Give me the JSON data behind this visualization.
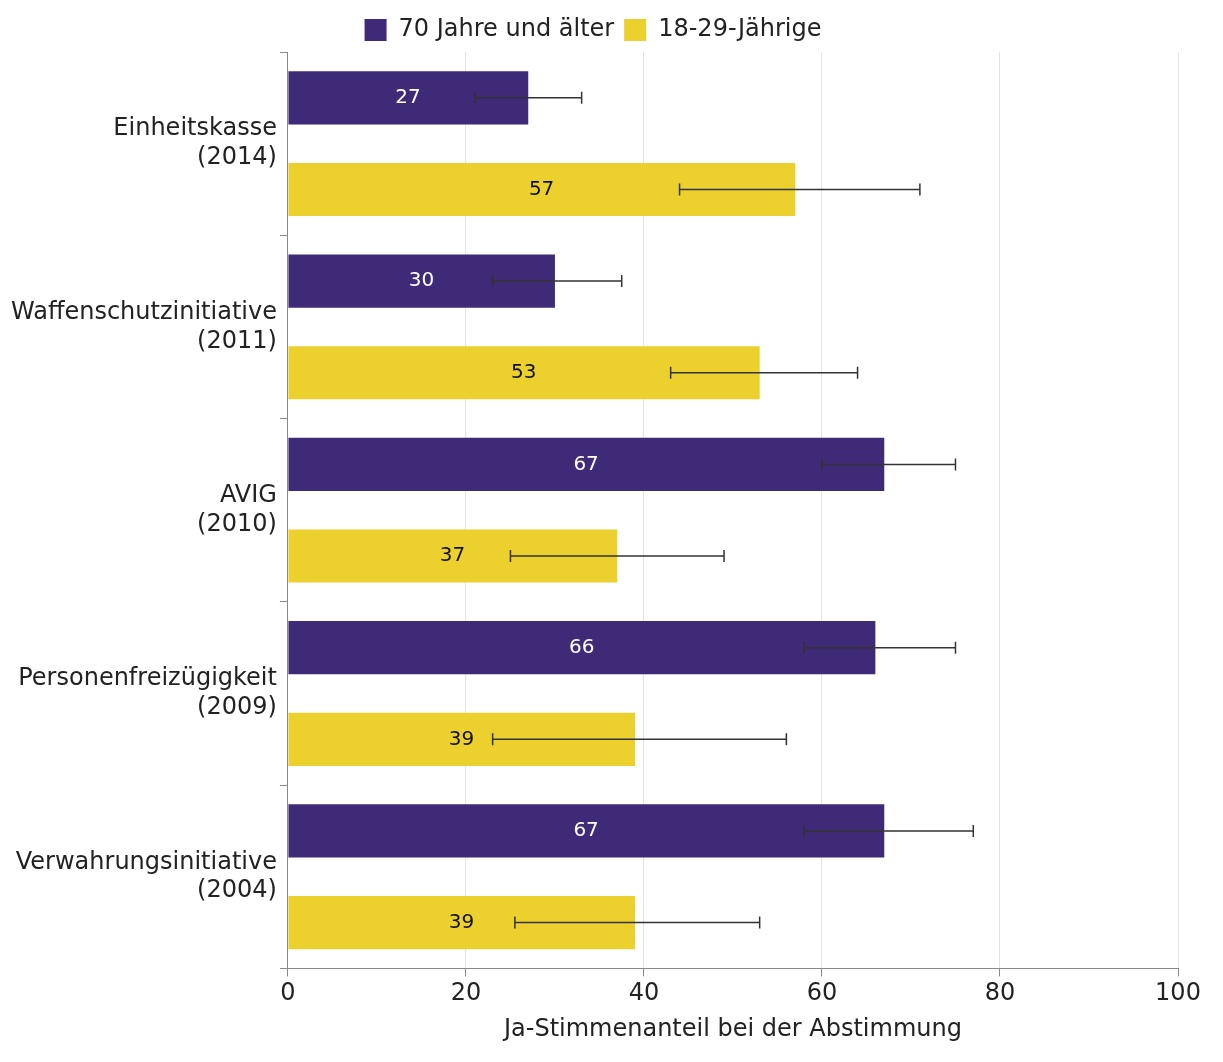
{
  "chart_data": {
    "type": "bar",
    "orientation": "horizontal",
    "xlabel": "Ja-Stimmenanteil bei der Abstimmung",
    "categories": [
      "Einheitskasse\n(2014)",
      "Waffenschutzinitiative\n(2011)",
      "AVIG\n(2010)",
      "Personenfreizügigkeit\n(2009)",
      "Verwahrungsinitiative\n(2004)"
    ],
    "series": [
      {
        "name": "70 Jahre und älter",
        "color": "#3f2a78",
        "values": [
          27,
          30,
          67,
          66,
          67
        ],
        "errors": [
          [
            21,
            33
          ],
          [
            23,
            37.5
          ],
          [
            60,
            75
          ],
          [
            58,
            75
          ],
          [
            58,
            77
          ]
        ]
      },
      {
        "name": "18-29-Jährige",
        "color": "#ebd02e",
        "values": [
          57,
          53,
          37,
          39,
          39
        ],
        "errors": [
          [
            44,
            71
          ],
          [
            43,
            64
          ],
          [
            25,
            49
          ],
          [
            23,
            56
          ],
          [
            25.5,
            53
          ]
        ]
      }
    ],
    "data_labels": true,
    "xlim": [
      0,
      100
    ],
    "xticks": [
      0,
      20,
      40,
      60,
      80,
      100
    ],
    "grid": "x",
    "legend": "top"
  }
}
